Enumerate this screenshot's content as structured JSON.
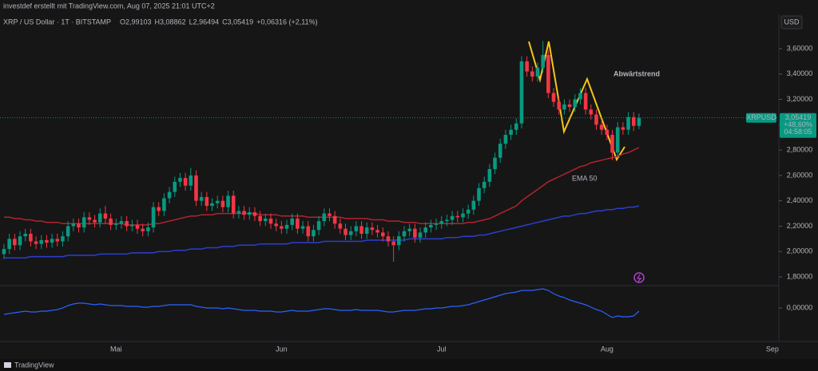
{
  "chart_data": {
    "type": "candlestick",
    "subtitle": "investdef erstellt mit TradingView.com, Aug 07, 2025 21:01 UTC+2",
    "title": "XRP / US Dollar · 1T · BITSTAMP",
    "ohlc_labels": [
      "O2,99103",
      "H3,08862",
      "L2,96494",
      "C3,05419",
      "+0,06316 (+2,11%)"
    ],
    "currency": "USD",
    "brand": "TradingView",
    "annotations": [
      "Abwärtstrend",
      "EMA 50"
    ],
    "up_color": "#089981",
    "down_color": "#f23645",
    "categories": [
      null,
      null,
      null,
      null,
      null,
      null,
      null,
      null,
      null,
      null,
      null,
      null,
      null,
      null,
      null,
      null,
      null,
      null,
      null,
      null,
      null,
      "Mai",
      null,
      null,
      null,
      null,
      null,
      null,
      null,
      null,
      null,
      null,
      null,
      null,
      null,
      null,
      null,
      null,
      null,
      null,
      null,
      null,
      null,
      null,
      null,
      null,
      null,
      null,
      null,
      null,
      null,
      null,
      "Jun",
      null,
      null,
      null,
      null,
      null,
      null,
      null,
      null,
      null,
      null,
      null,
      null,
      null,
      null,
      null,
      null,
      null,
      null,
      null,
      null,
      null,
      null,
      null,
      null,
      null,
      null,
      null,
      null,
      null,
      "Jul",
      null,
      null,
      null,
      null,
      null,
      null,
      null,
      null,
      null,
      null,
      null,
      null,
      null,
      null,
      null,
      null,
      null,
      null,
      null,
      null,
      null,
      null,
      null,
      null,
      null,
      null,
      null,
      null,
      null,
      null,
      "Aug",
      null,
      null,
      null,
      null,
      null,
      null,
      null,
      null,
      null,
      null,
      null,
      null,
      null,
      null,
      null,
      null,
      null,
      null,
      null,
      null,
      null,
      null,
      null,
      null,
      null,
      null,
      null,
      null,
      null,
      null,
      "Sep"
    ],
    "candles": {
      "open": [
        1.98,
        2.02,
        2.1,
        2.05,
        2.12,
        2.14,
        2.08,
        2.06,
        2.09,
        2.07,
        2.1,
        2.08,
        2.12,
        2.2,
        2.22,
        2.19,
        2.27,
        2.25,
        2.23,
        2.3,
        2.26,
        2.21,
        2.22,
        2.24,
        2.2,
        2.21,
        2.18,
        2.16,
        2.19,
        2.35,
        2.32,
        2.42,
        2.47,
        2.55,
        2.58,
        2.52,
        2.6,
        2.4,
        2.43,
        2.36,
        2.38,
        2.4,
        2.35,
        2.44,
        2.3,
        2.32,
        2.29,
        2.31,
        2.28,
        2.24,
        2.26,
        2.22,
        2.2,
        2.18,
        2.21,
        2.26,
        2.18,
        2.2,
        2.12,
        2.17,
        2.24,
        2.3,
        2.28,
        2.22,
        2.18,
        2.13,
        2.16,
        2.2,
        2.14,
        2.19,
        2.17,
        2.15,
        2.12,
        2.08,
        2.05,
        2.12,
        2.16,
        2.18,
        2.11,
        2.15,
        2.19,
        2.21,
        2.22,
        2.24,
        2.25,
        2.28,
        2.27,
        2.3,
        2.33,
        2.4,
        2.5,
        2.55,
        2.65,
        2.74,
        2.85,
        2.92,
        2.96,
        3.01,
        3.5,
        3.42,
        3.38,
        3.45,
        3.55,
        3.25,
        3.18,
        3.12,
        3.16,
        3.14,
        3.2,
        3.25,
        3.12,
        3.08,
        3.0,
        2.96,
        2.92,
        2.78,
        2.98,
        2.96,
        3.06,
        2.99103
      ],
      "high": [
        2.06,
        2.14,
        2.14,
        2.16,
        2.18,
        2.18,
        2.12,
        2.13,
        2.13,
        2.14,
        2.14,
        2.16,
        2.24,
        2.26,
        2.26,
        2.31,
        2.31,
        2.29,
        2.34,
        2.36,
        2.3,
        2.26,
        2.28,
        2.28,
        2.25,
        2.25,
        2.22,
        2.23,
        2.39,
        2.39,
        2.46,
        2.51,
        2.59,
        2.62,
        2.62,
        2.66,
        2.64,
        2.47,
        2.47,
        2.42,
        2.44,
        2.44,
        2.48,
        2.48,
        2.36,
        2.36,
        2.35,
        2.35,
        2.32,
        2.3,
        2.3,
        2.26,
        2.24,
        2.25,
        2.3,
        2.3,
        2.24,
        2.24,
        2.21,
        2.28,
        2.34,
        2.34,
        2.32,
        2.26,
        2.22,
        2.2,
        2.24,
        2.24,
        2.23,
        2.23,
        2.21,
        2.19,
        2.16,
        2.12,
        2.16,
        2.2,
        2.22,
        2.22,
        2.19,
        2.23,
        2.25,
        2.26,
        2.28,
        2.29,
        2.32,
        2.32,
        2.34,
        2.37,
        2.44,
        2.54,
        2.59,
        2.69,
        2.78,
        2.89,
        2.96,
        3.0,
        3.05,
        3.54,
        3.54,
        3.46,
        3.49,
        3.66,
        3.59,
        3.29,
        3.22,
        3.2,
        3.2,
        3.24,
        3.29,
        3.29,
        3.16,
        3.12,
        3.04,
        3.0,
        2.96,
        3.02,
        3.02,
        3.1,
        3.1,
        3.08862
      ],
      "low": [
        1.94,
        1.98,
        2.01,
        2.01,
        2.08,
        2.04,
        2.02,
        2.02,
        2.03,
        2.03,
        2.04,
        2.04,
        2.08,
        2.16,
        2.15,
        2.15,
        2.21,
        2.19,
        2.19,
        2.22,
        2.17,
        2.17,
        2.18,
        2.16,
        2.16,
        2.14,
        2.12,
        2.12,
        2.15,
        2.28,
        2.28,
        2.38,
        2.43,
        2.51,
        2.48,
        2.48,
        2.36,
        2.36,
        2.32,
        2.32,
        2.34,
        2.31,
        2.31,
        2.26,
        2.26,
        2.25,
        2.25,
        2.24,
        2.2,
        2.2,
        2.18,
        2.16,
        2.14,
        2.14,
        2.17,
        2.14,
        2.14,
        2.08,
        2.08,
        2.13,
        2.2,
        2.24,
        2.18,
        2.14,
        2.09,
        2.09,
        2.12,
        2.1,
        2.1,
        2.13,
        2.11,
        2.08,
        2.04,
        1.92,
        2.01,
        2.08,
        2.12,
        2.07,
        2.07,
        2.11,
        2.15,
        2.17,
        2.18,
        2.2,
        2.21,
        2.23,
        2.23,
        2.26,
        2.29,
        2.36,
        2.46,
        2.51,
        2.61,
        2.7,
        2.81,
        2.88,
        2.92,
        2.97,
        3.38,
        3.34,
        3.34,
        3.41,
        3.21,
        3.14,
        3.08,
        3.08,
        3.1,
        3.1,
        3.16,
        3.08,
        3.04,
        2.96,
        2.92,
        2.88,
        2.72,
        2.74,
        2.92,
        2.92,
        2.95,
        2.96494
      ],
      "close": [
        2.02,
        2.1,
        2.05,
        2.12,
        2.14,
        2.08,
        2.06,
        2.09,
        2.07,
        2.1,
        2.08,
        2.12,
        2.2,
        2.22,
        2.19,
        2.27,
        2.25,
        2.23,
        2.3,
        2.26,
        2.21,
        2.22,
        2.24,
        2.2,
        2.21,
        2.18,
        2.16,
        2.19,
        2.35,
        2.32,
        2.42,
        2.47,
        2.55,
        2.58,
        2.52,
        2.6,
        2.4,
        2.43,
        2.36,
        2.38,
        2.4,
        2.35,
        2.44,
        2.3,
        2.32,
        2.29,
        2.31,
        2.28,
        2.24,
        2.26,
        2.22,
        2.2,
        2.18,
        2.21,
        2.26,
        2.18,
        2.2,
        2.12,
        2.17,
        2.24,
        2.3,
        2.28,
        2.22,
        2.18,
        2.13,
        2.16,
        2.2,
        2.14,
        2.19,
        2.17,
        2.15,
        2.12,
        2.08,
        2.05,
        2.12,
        2.16,
        2.18,
        2.11,
        2.15,
        2.19,
        2.21,
        2.22,
        2.24,
        2.25,
        2.28,
        2.27,
        2.3,
        2.33,
        2.4,
        2.5,
        2.55,
        2.65,
        2.74,
        2.85,
        2.92,
        2.96,
        3.01,
        3.5,
        3.42,
        3.38,
        3.45,
        3.55,
        3.25,
        3.18,
        3.12,
        3.16,
        3.14,
        3.2,
        3.25,
        3.12,
        3.08,
        3.0,
        2.96,
        2.92,
        2.78,
        2.98,
        2.96,
        3.06,
        2.99103,
        3.05419
      ]
    },
    "lines": [
      {
        "color": "#b2232f",
        "values": [
          2.27,
          2.27,
          2.26,
          2.26,
          2.25,
          2.25,
          2.24,
          2.24,
          2.23,
          2.23,
          2.23,
          2.22,
          2.22,
          2.22,
          2.22,
          2.22,
          2.22,
          2.22,
          2.22,
          2.22,
          2.22,
          2.22,
          2.22,
          2.21,
          2.21,
          2.21,
          2.21,
          2.21,
          2.22,
          2.22,
          2.23,
          2.24,
          2.25,
          2.26,
          2.27,
          2.28,
          2.28,
          2.29,
          2.29,
          2.29,
          2.3,
          2.3,
          2.3,
          2.3,
          2.3,
          2.3,
          2.3,
          2.3,
          2.29,
          2.29,
          2.29,
          2.29,
          2.28,
          2.28,
          2.28,
          2.28,
          2.28,
          2.27,
          2.27,
          2.27,
          2.27,
          2.27,
          2.27,
          2.27,
          2.26,
          2.26,
          2.26,
          2.26,
          2.26,
          2.25,
          2.25,
          2.25,
          2.24,
          2.24,
          2.24,
          2.23,
          2.23,
          2.23,
          2.22,
          2.22,
          2.22,
          2.22,
          2.22,
          2.22,
          2.22,
          2.22,
          2.22,
          2.23,
          2.23,
          2.24,
          2.25,
          2.26,
          2.28,
          2.3,
          2.32,
          2.34,
          2.36,
          2.4,
          2.43,
          2.46,
          2.49,
          2.52,
          2.55,
          2.57,
          2.59,
          2.61,
          2.63,
          2.65,
          2.67,
          2.68,
          2.7,
          2.71,
          2.72,
          2.73,
          2.74,
          2.75,
          2.77,
          2.78,
          2.8,
          2.82
        ]
      },
      {
        "color": "#2a3fd0",
        "values": [
          1.95,
          1.95,
          1.95,
          1.95,
          1.95,
          1.96,
          1.96,
          1.96,
          1.96,
          1.96,
          1.96,
          1.96,
          1.97,
          1.97,
          1.97,
          1.97,
          1.97,
          1.97,
          1.98,
          1.98,
          1.98,
          1.98,
          1.98,
          1.98,
          1.99,
          1.99,
          1.99,
          1.99,
          1.99,
          2.0,
          2.0,
          2.0,
          2.01,
          2.01,
          2.01,
          2.02,
          2.02,
          2.02,
          2.03,
          2.03,
          2.03,
          2.04,
          2.04,
          2.04,
          2.05,
          2.05,
          2.05,
          2.05,
          2.06,
          2.06,
          2.06,
          2.06,
          2.06,
          2.06,
          2.07,
          2.07,
          2.07,
          2.07,
          2.07,
          2.07,
          2.08,
          2.08,
          2.08,
          2.08,
          2.08,
          2.08,
          2.08,
          2.08,
          2.09,
          2.09,
          2.09,
          2.09,
          2.09,
          2.09,
          2.09,
          2.09,
          2.1,
          2.1,
          2.1,
          2.1,
          2.1,
          2.1,
          2.1,
          2.11,
          2.11,
          2.11,
          2.12,
          2.12,
          2.12,
          2.13,
          2.13,
          2.14,
          2.15,
          2.16,
          2.17,
          2.18,
          2.19,
          2.2,
          2.21,
          2.22,
          2.23,
          2.24,
          2.25,
          2.26,
          2.27,
          2.28,
          2.28,
          2.29,
          2.3,
          2.3,
          2.31,
          2.32,
          2.32,
          2.33,
          2.33,
          2.34,
          2.34,
          2.35,
          2.35,
          2.36
        ]
      }
    ],
    "ylim": [
      1.75,
      3.845
    ],
    "yticks": [
      {
        "value": 1.8,
        "label": "1,80000"
      },
      {
        "value": 2.0,
        "label": "2,00000"
      },
      {
        "value": 2.2,
        "label": "2,20000"
      },
      {
        "value": 2.4,
        "label": "2,40000"
      },
      {
        "value": 2.6,
        "label": "2,60000"
      },
      {
        "value": 2.8,
        "label": "2,80000"
      },
      {
        "value": 3.0,
        "label": "3,00000"
      },
      {
        "value": 3.2,
        "label": "3,20000"
      },
      {
        "value": 3.4,
        "label": "3,40000"
      },
      {
        "value": 3.6,
        "label": "3,60000"
      }
    ],
    "last_price": {
      "symbol": "XRPUSD",
      "label": "3,05419",
      "change": "+48,60%",
      "countdown": "04:58:05"
    },
    "oscillator": {
      "color": "#2962ff",
      "ylim": [
        -0.039,
        0.026
      ],
      "yticks": [
        {
          "value": 0,
          "label": "0,00000"
        }
      ],
      "values": [
        -0.008,
        -0.007,
        -0.006,
        -0.005,
        -0.004,
        -0.005,
        -0.005,
        -0.004,
        -0.004,
        -0.003,
        -0.002,
        0,
        0.003,
        0.005,
        0.006,
        0.006,
        0.005,
        0.004,
        0.005,
        0.004,
        0.003,
        0.003,
        0.003,
        0.002,
        0.002,
        0.002,
        0.001,
        0.001,
        0.002,
        0.002,
        0.003,
        0.004,
        0.004,
        0.004,
        0.004,
        0.004,
        0.002,
        0.001,
        0,
        0,
        0,
        -0.001,
        0,
        -0.001,
        -0.002,
        -0.003,
        -0.003,
        -0.003,
        -0.004,
        -0.004,
        -0.004,
        -0.005,
        -0.005,
        -0.004,
        -0.003,
        -0.004,
        -0.004,
        -0.004,
        -0.003,
        -0.002,
        -0.001,
        -0.001,
        -0.002,
        -0.003,
        -0.003,
        -0.003,
        -0.002,
        -0.003,
        -0.003,
        -0.003,
        -0.003,
        -0.004,
        -0.005,
        -0.005,
        -0.004,
        -0.003,
        -0.003,
        -0.003,
        -0.002,
        -0.001,
        -0.001,
        0,
        0,
        0.001,
        0.002,
        0.002,
        0.003,
        0.004,
        0.006,
        0.008,
        0.01,
        0.012,
        0.014,
        0.016,
        0.018,
        0.019,
        0.02,
        0.022,
        0.022,
        0.022,
        0.023,
        0.024,
        0.022,
        0.018,
        0.015,
        0.013,
        0.01,
        0.008,
        0.006,
        0.004,
        0.001,
        -0.002,
        -0.004,
        -0.008,
        -0.012,
        -0.01,
        -0.011,
        -0.011,
        -0.01,
        -0.004
      ]
    }
  }
}
